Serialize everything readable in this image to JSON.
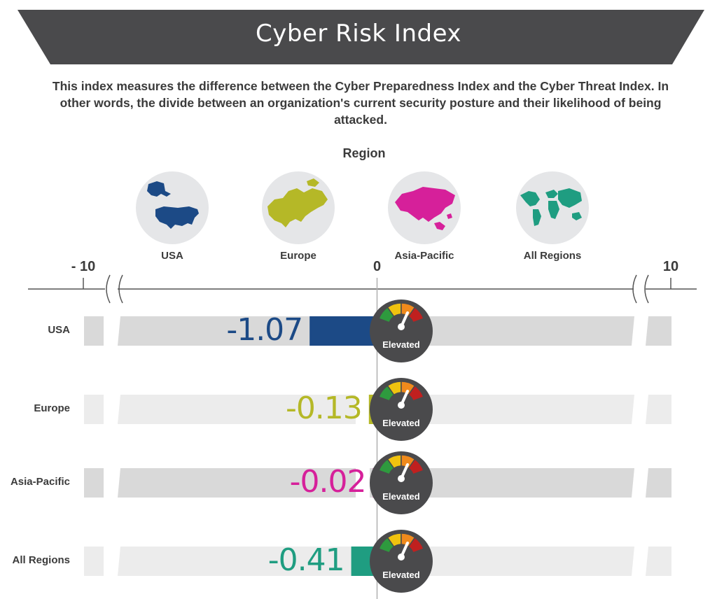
{
  "header": {
    "title": "Cyber Risk Index",
    "description": "This index measures the difference between the Cyber Preparedness Index and the Cyber Threat Index. In other words, the divide between an organization's current security posture and their likelihood of being attacked."
  },
  "regions": {
    "heading": "Region",
    "items": [
      {
        "label": "USA",
        "color": "#1c4a86",
        "icon": "usa-map-icon"
      },
      {
        "label": "Europe",
        "color": "#b5b827",
        "icon": "europe-map-icon"
      },
      {
        "label": "Asia-Pacific",
        "color": "#d6209a",
        "icon": "asia-pacific-map-icon"
      },
      {
        "label": "All Regions",
        "color": "#1f9d81",
        "icon": "world-map-icon"
      }
    ]
  },
  "chart_data": {
    "type": "bar",
    "orientation": "horizontal",
    "axis": {
      "ticks": [
        {
          "value": -10,
          "label": "- 10"
        },
        {
          "value": 0,
          "label": "0"
        },
        {
          "value": 10,
          "label": "10"
        }
      ],
      "range": [
        -10,
        10
      ],
      "axis_breaks": true
    },
    "categories": [
      "USA",
      "Europe",
      "Asia-Pacific",
      "All Regions"
    ],
    "values": [
      -1.07,
      -0.13,
      -0.02,
      -0.41
    ],
    "value_labels": [
      "-1.07",
      "-0.13",
      "-0.02",
      "-0.41"
    ],
    "colors": [
      "#1c4a86",
      "#b5b827",
      "#d6209a",
      "#1f9d81"
    ],
    "track_colors": [
      "#d9d9d9",
      "#ececec",
      "#d9d9d9",
      "#ececec"
    ],
    "gauge": {
      "label": "Elevated",
      "segment_colors": [
        "#2e9a3e",
        "#f0c30f",
        "#f08a1c",
        "#c0201f"
      ]
    }
  }
}
